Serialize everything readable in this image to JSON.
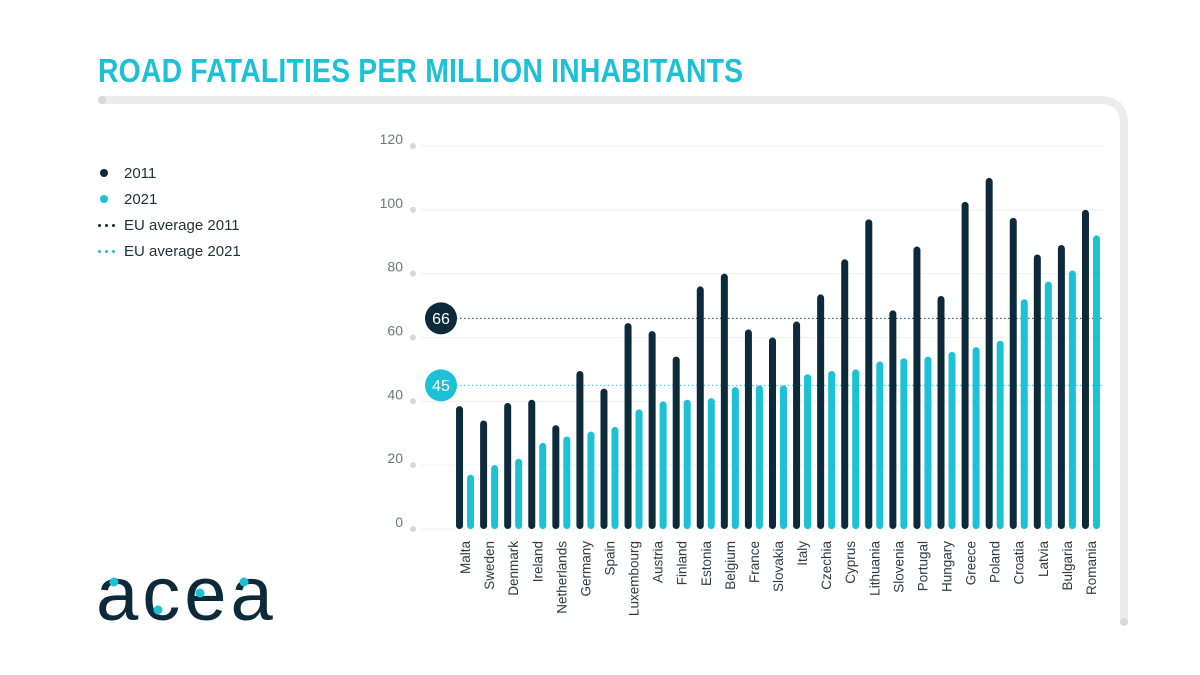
{
  "title": "ROAD FATALITIES PER MILLION INHABITANTS",
  "legend": [
    {
      "label": "2011",
      "kind": "dot",
      "color": "#0d2a3a"
    },
    {
      "label": "2021",
      "kind": "dot",
      "color": "#1cc1d6"
    },
    {
      "label": "EU average 2011",
      "kind": "dotted",
      "color": "#0d2a3a"
    },
    {
      "label": "EU average 2021",
      "kind": "dotted",
      "color": "#1cc1d6"
    }
  ],
  "logo_text": "acea",
  "chart_data": {
    "type": "bar",
    "title": "ROAD FATALITIES PER MILLION INHABITANTS",
    "ylim": [
      0,
      120
    ],
    "yticks": [
      0,
      20,
      40,
      60,
      80,
      100,
      120
    ],
    "grid": true,
    "legend_position": "left",
    "categories": [
      "Malta",
      "Sweden",
      "Denmark",
      "Ireland",
      "Netherlands",
      "Germany",
      "Spain",
      "Luxembourg",
      "Austria",
      "Finland",
      "Estonia",
      "Belgium",
      "France",
      "Slovakia",
      "Italy",
      "Czechia",
      "Cyprus",
      "Lithuania",
      "Slovenia",
      "Portugal",
      "Hungary",
      "Greece",
      "Poland",
      "Croatia",
      "Latvia",
      "Bulgaria",
      "Romania"
    ],
    "series": [
      {
        "name": "2011",
        "color": "#0d2a3a",
        "values": [
          38.5,
          34,
          39.5,
          40.5,
          32.5,
          49.5,
          44,
          64.5,
          62,
          54,
          76,
          80,
          62.5,
          60,
          65,
          73.5,
          84.5,
          97,
          68.5,
          88.5,
          73,
          102.5,
          110,
          97.5,
          86,
          89,
          100
        ]
      },
      {
        "name": "2021",
        "color": "#1cc1d6",
        "values": [
          17,
          20,
          22,
          27,
          29,
          30.5,
          32,
          37.5,
          40,
          40.5,
          41,
          44.5,
          45,
          45,
          48.5,
          49.5,
          50,
          52.5,
          53.5,
          54,
          55.5,
          57,
          59,
          72,
          77.5,
          81,
          92
        ]
      }
    ],
    "reference_lines": [
      {
        "name": "EU average 2011",
        "value": 66,
        "label": "66",
        "color": "#0d2a3a"
      },
      {
        "name": "EU average 2021",
        "value": 45,
        "label": "45",
        "color": "#1cc1d6"
      }
    ]
  }
}
